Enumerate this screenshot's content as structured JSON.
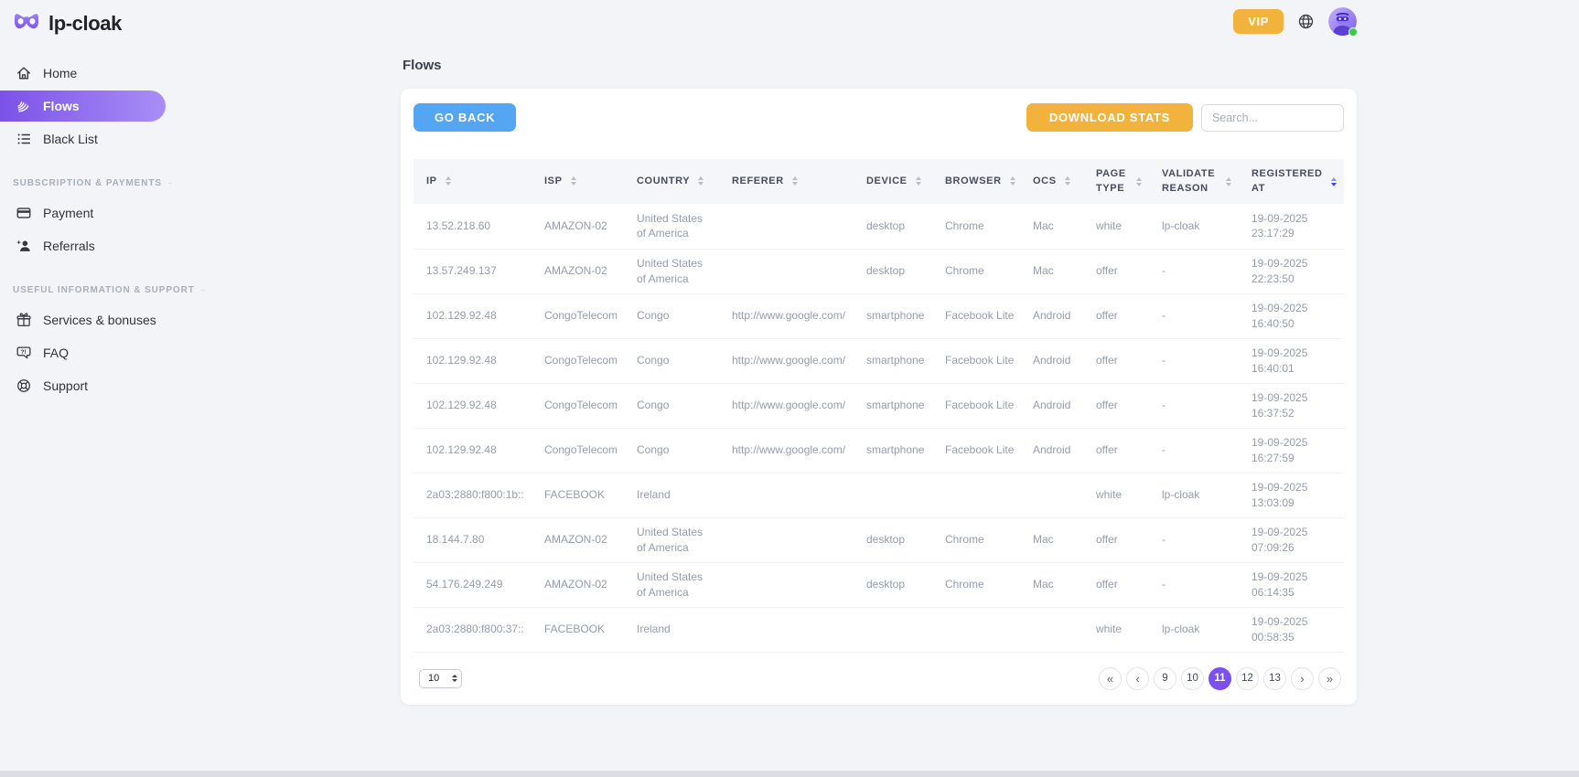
{
  "brand": {
    "name": "lp-cloak",
    "logo_icon": "mask-icon"
  },
  "topbar": {
    "vip_label": "VIP",
    "globe_icon": "globe-icon",
    "avatar": {
      "icon": "masked-user-avatar",
      "status": "online"
    }
  },
  "sidebar": {
    "sections": [
      {
        "header": "",
        "items": [
          {
            "id": "home",
            "label": "Home",
            "icon": "home-icon",
            "active": false
          },
          {
            "id": "flows",
            "label": "Flows",
            "icon": "flows-icon",
            "active": true
          },
          {
            "id": "black-list",
            "label": "Black List",
            "icon": "black-list-icon",
            "active": false
          }
        ]
      },
      {
        "header": "SUBSCRIPTION & PAYMENTS",
        "items": [
          {
            "id": "payment",
            "label": "Payment",
            "icon": "payment-icon",
            "active": false
          },
          {
            "id": "referrals",
            "label": "Referrals",
            "icon": "referrals-icon",
            "active": false
          }
        ]
      },
      {
        "header": "USEFUL INFORMATION & SUPPORT",
        "items": [
          {
            "id": "services-bonuses",
            "label": "Services & bonuses",
            "icon": "gift-icon",
            "active": false
          },
          {
            "id": "faq",
            "label": "FAQ",
            "icon": "faq-icon",
            "active": false
          },
          {
            "id": "support",
            "label": "Support",
            "icon": "support-icon",
            "active": false
          }
        ]
      }
    ]
  },
  "page": {
    "title": "Flows"
  },
  "toolbar": {
    "go_back_label": "GO BACK",
    "download_stats_label": "DOWNLOAD STATS",
    "search_placeholder": "Search..."
  },
  "table": {
    "columns": [
      {
        "id": "ip",
        "label": "IP",
        "sort_active": false
      },
      {
        "id": "isp",
        "label": "ISP",
        "sort_active": false
      },
      {
        "id": "country",
        "label": "COUNTRY",
        "sort_active": false
      },
      {
        "id": "referer",
        "label": "REFERER",
        "sort_active": false
      },
      {
        "id": "device",
        "label": "DEVICE",
        "sort_active": false
      },
      {
        "id": "browser",
        "label": "BROWSER",
        "sort_active": false
      },
      {
        "id": "ocs",
        "label": "OCS",
        "sort_active": false
      },
      {
        "id": "page_type",
        "label": "PAGE TYPE",
        "sort_active": false
      },
      {
        "id": "validate_reason",
        "label": "VALIDATE REASON",
        "sort_active": false
      },
      {
        "id": "registered_at",
        "label": "REGISTERED AT",
        "sort_active": true
      }
    ],
    "rows": [
      {
        "ip": "13.52.218.60",
        "isp": "AMAZON-02",
        "country": "United States of America",
        "referer": "",
        "device": "desktop",
        "browser": "Chrome",
        "ocs": "Mac",
        "page_type": "white",
        "validate_reason": "lp-cloak",
        "registered_at": "19-09-2025 23:17:29"
      },
      {
        "ip": "13.57.249.137",
        "isp": "AMAZON-02",
        "country": "United States of America",
        "referer": "",
        "device": "desktop",
        "browser": "Chrome",
        "ocs": "Mac",
        "page_type": "offer",
        "validate_reason": "-",
        "registered_at": "19-09-2025 22:23:50"
      },
      {
        "ip": "102.129.92.48",
        "isp": "CongoTelecom",
        "country": "Congo",
        "referer": "http://www.google.com/",
        "device": "smartphone",
        "browser": "Facebook Lite",
        "ocs": "Android",
        "page_type": "offer",
        "validate_reason": "-",
        "registered_at": "19-09-2025 16:40:50"
      },
      {
        "ip": "102.129.92.48",
        "isp": "CongoTelecom",
        "country": "Congo",
        "referer": "http://www.google.com/",
        "device": "smartphone",
        "browser": "Facebook Lite",
        "ocs": "Android",
        "page_type": "offer",
        "validate_reason": "-",
        "registered_at": "19-09-2025 16:40:01"
      },
      {
        "ip": "102.129.92.48",
        "isp": "CongoTelecom",
        "country": "Congo",
        "referer": "http://www.google.com/",
        "device": "smartphone",
        "browser": "Facebook Lite",
        "ocs": "Android",
        "page_type": "offer",
        "validate_reason": "-",
        "registered_at": "19-09-2025 16:37:52"
      },
      {
        "ip": "102.129.92.48",
        "isp": "CongoTelecom",
        "country": "Congo",
        "referer": "http://www.google.com/",
        "device": "smartphone",
        "browser": "Facebook Lite",
        "ocs": "Android",
        "page_type": "offer",
        "validate_reason": "-",
        "registered_at": "19-09-2025 16:27:59"
      },
      {
        "ip": "2a03:2880:f800:1b::",
        "isp": "FACEBOOK",
        "country": "Ireland",
        "referer": "",
        "device": "",
        "browser": "",
        "ocs": "",
        "page_type": "white",
        "validate_reason": "lp-cloak",
        "registered_at": "19-09-2025 13:03:09"
      },
      {
        "ip": "18.144.7.80",
        "isp": "AMAZON-02",
        "country": "United States of America",
        "referer": "",
        "device": "desktop",
        "browser": "Chrome",
        "ocs": "Mac",
        "page_type": "offer",
        "validate_reason": "-",
        "registered_at": "19-09-2025 07:09:26"
      },
      {
        "ip": "54.176.249.249",
        "isp": "AMAZON-02",
        "country": "United States of America",
        "referer": "",
        "device": "desktop",
        "browser": "Chrome",
        "ocs": "Mac",
        "page_type": "offer",
        "validate_reason": "-",
        "registered_at": "19-09-2025 06:14:35"
      },
      {
        "ip": "2a03:2880:f800:37::",
        "isp": "FACEBOOK",
        "country": "Ireland",
        "referer": "",
        "device": "",
        "browser": "",
        "ocs": "",
        "page_type": "white",
        "validate_reason": "lp-cloak",
        "registered_at": "19-09-2025 00:58:35"
      }
    ]
  },
  "pagination": {
    "per_page": "10",
    "first_label": "«",
    "prev_label": "‹",
    "pages": [
      "9",
      "10",
      "11",
      "12",
      "13"
    ],
    "active_page": "11",
    "next_label": "›",
    "last_label": "»"
  },
  "colors": {
    "accent_purple": "#7b4ff2",
    "accent_orange": "#f2b33c",
    "accent_blue": "#55a6f2",
    "online_green": "#35ce46"
  }
}
